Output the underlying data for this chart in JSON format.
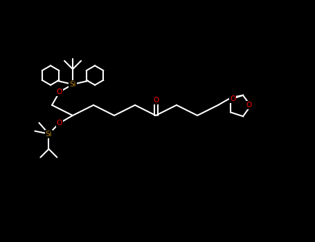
{
  "bg_color": "#000000",
  "bond_color": "#ffffff",
  "O_color": "#ff0000",
  "Si_color": "#b8860b",
  "lw": 1.5,
  "fs": 7.5,
  "figsize": [
    4.55,
    3.5
  ],
  "dpi": 100,
  "xlim": [
    0,
    455
  ],
  "ylim": [
    0,
    350
  ],
  "chain_x0": 75,
  "chain_y0": 198,
  "sx": 30,
  "sy": 15,
  "hex_r": 14
}
